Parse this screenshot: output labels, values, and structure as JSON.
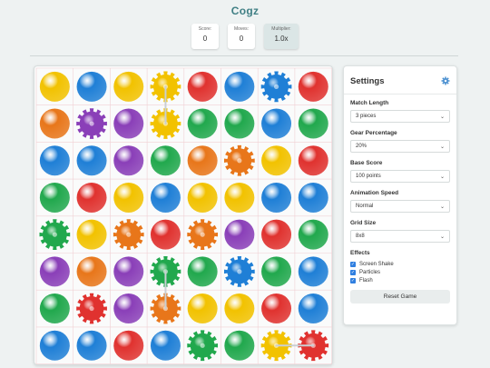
{
  "title": "Cogz",
  "stats": {
    "score_label": "Score:",
    "score_value": "0",
    "moves_label": "Moves:",
    "moves_value": "0",
    "multiplier_label": "Multiplier:",
    "multiplier_value": "1.0x"
  },
  "settings": {
    "title": "Settings",
    "icon": "gear-icon",
    "match_length_label": "Match Length",
    "match_length_value": "3 pieces",
    "gear_pct_label": "Gear Percentage",
    "gear_pct_value": "20%",
    "base_score_label": "Base Score",
    "base_score_value": "100 points",
    "anim_speed_label": "Animation Speed",
    "anim_speed_value": "Normal",
    "grid_size_label": "Grid Size",
    "grid_size_value": "8x8",
    "effects_label": "Effects",
    "effects": [
      "Screen Shake",
      "Particles",
      "Flash"
    ],
    "reset_label": "Reset Game"
  },
  "colors": {
    "Y": "#f2c200",
    "B": "#1f7fd6",
    "R": "#e0322f",
    "G": "#21a84d",
    "O": "#e8761a",
    "P": "#8a3fb8"
  },
  "board": {
    "rows": 8,
    "cols": 8,
    "cells": [
      [
        "Y",
        "B",
        "Y",
        "Y*",
        "R",
        "B",
        "B*",
        "R"
      ],
      [
        "O",
        "P*",
        "P",
        "Y*",
        "G",
        "G",
        "B",
        "G"
      ],
      [
        "B",
        "B",
        "P",
        "G",
        "O",
        "O*",
        "Y",
        "R"
      ],
      [
        "G",
        "R",
        "Y",
        "B",
        "Y",
        "Y",
        "B",
        "B"
      ],
      [
        "G*",
        "Y",
        "O*",
        "R",
        "O*",
        "P",
        "R",
        "G"
      ],
      [
        "P",
        "O",
        "P",
        "G*",
        "G",
        "B*",
        "G",
        "B"
      ],
      [
        "G",
        "R*",
        "P",
        "O*",
        "Y",
        "Y",
        "R",
        "B"
      ],
      [
        "B",
        "B",
        "R",
        "B",
        "G*",
        "G",
        "Y*",
        "R*"
      ]
    ]
  }
}
